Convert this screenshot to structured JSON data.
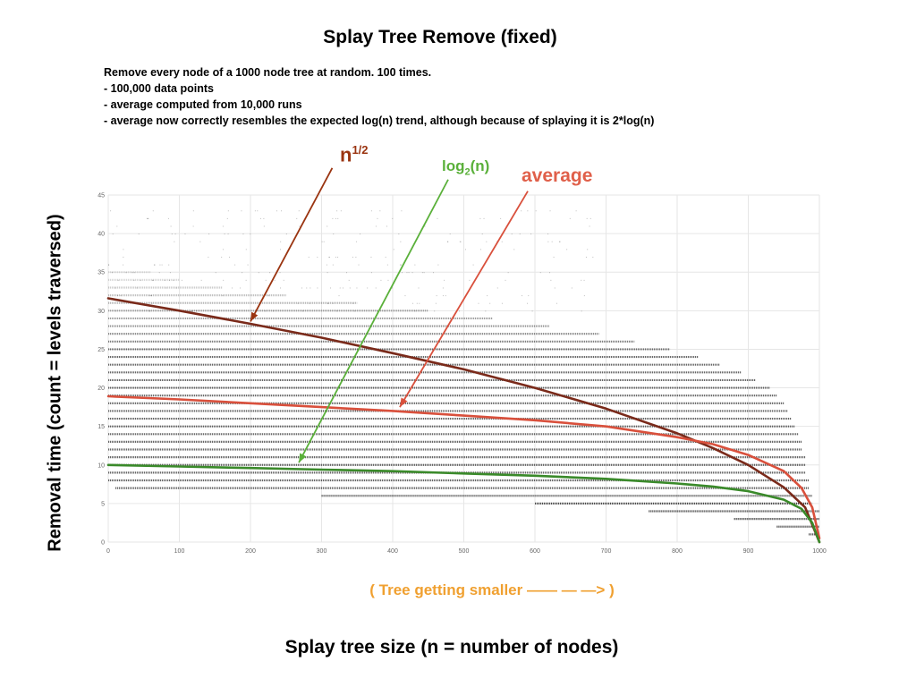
{
  "title": "Splay Tree Remove (fixed)",
  "notes": {
    "intro": "Remove every node of a 1000 node tree at random. 100 times.",
    "bullets": [
      "100,000 data points",
      "average computed from 10,000 runs",
      "average now correctly resembles the expected log(n) trend, although because of splaying it is 2*log(n)"
    ]
  },
  "annotations": {
    "sqrt_base": "n",
    "sqrt_exp": "1/2",
    "log_base": "log",
    "log_sub": "2",
    "log_arg": "(n)",
    "average": "average",
    "direction": "( Tree getting smaller —— — —> )"
  },
  "chart_data": {
    "type": "scatter",
    "xlabel": "Splay tree size (n = number of nodes)",
    "ylabel": "Removal time (count = levels traversed)",
    "xlim": [
      0,
      1000
    ],
    "ylim": [
      0,
      45
    ],
    "x_ticks": [
      0,
      100,
      200,
      300,
      400,
      500,
      600,
      700,
      800,
      900,
      1000
    ],
    "y_ticks": [
      0,
      5,
      10,
      15,
      20,
      25,
      30,
      35,
      40,
      45
    ],
    "grid": true,
    "scatter_point_count_text": "100,000 data points",
    "series": [
      {
        "name": "n^(1/2)",
        "color": "#7a2a1a",
        "points": [
          [
            0,
            31.6
          ],
          [
            100,
            30
          ],
          [
            200,
            28.3
          ],
          [
            300,
            26.5
          ],
          [
            400,
            24.5
          ],
          [
            500,
            22.4
          ],
          [
            600,
            20
          ],
          [
            700,
            17.3
          ],
          [
            800,
            14.1
          ],
          [
            850,
            12.2
          ],
          [
            900,
            10
          ],
          [
            950,
            7.1
          ],
          [
            980,
            4.5
          ],
          [
            1000,
            0
          ]
        ]
      },
      {
        "name": "average",
        "color": "#d9503c",
        "points": [
          [
            0,
            18.9
          ],
          [
            100,
            18.5
          ],
          [
            200,
            18.0
          ],
          [
            300,
            17.5
          ],
          [
            400,
            17.0
          ],
          [
            500,
            16.4
          ],
          [
            600,
            15.8
          ],
          [
            700,
            15.0
          ],
          [
            800,
            13.6
          ],
          [
            850,
            12.7
          ],
          [
            900,
            11.3
          ],
          [
            950,
            9.2
          ],
          [
            975,
            7.0
          ],
          [
            990,
            4.5
          ],
          [
            1000,
            0.5
          ]
        ]
      },
      {
        "name": "log2(n)",
        "color": "#3a8a2a",
        "points": [
          [
            0,
            10
          ],
          [
            100,
            9.8
          ],
          [
            200,
            9.6
          ],
          [
            300,
            9.4
          ],
          [
            400,
            9.2
          ],
          [
            500,
            8.9
          ],
          [
            600,
            8.6
          ],
          [
            700,
            8.2
          ],
          [
            800,
            7.6
          ],
          [
            850,
            7.2
          ],
          [
            900,
            6.6
          ],
          [
            950,
            5.5
          ],
          [
            975,
            4.3
          ],
          [
            990,
            2.5
          ],
          [
            1000,
            0
          ]
        ]
      }
    ],
    "scatter_rows": [
      {
        "y": 1,
        "x0": 985,
        "x1": 1000
      },
      {
        "y": 2,
        "x0": 940,
        "x1": 1000
      },
      {
        "y": 3,
        "x0": 880,
        "x1": 1000
      },
      {
        "y": 4,
        "x0": 760,
        "x1": 1000
      },
      {
        "y": 5,
        "x0": 600,
        "x1": 990
      },
      {
        "y": 6,
        "x0": 300,
        "x1": 990
      },
      {
        "y": 7,
        "x0": 10,
        "x1": 985
      },
      {
        "y": 8,
        "x0": 0,
        "x1": 985
      },
      {
        "y": 9,
        "x0": 0,
        "x1": 980
      },
      {
        "y": 10,
        "x0": 0,
        "x1": 980
      },
      {
        "y": 11,
        "x0": 0,
        "x1": 980
      },
      {
        "y": 12,
        "x0": 0,
        "x1": 975
      },
      {
        "y": 13,
        "x0": 0,
        "x1": 975
      },
      {
        "y": 14,
        "x0": 0,
        "x1": 970
      },
      {
        "y": 15,
        "x0": 0,
        "x1": 965
      },
      {
        "y": 16,
        "x0": 0,
        "x1": 960
      },
      {
        "y": 17,
        "x0": 0,
        "x1": 955
      },
      {
        "y": 18,
        "x0": 0,
        "x1": 950
      },
      {
        "y": 19,
        "x0": 0,
        "x1": 940
      },
      {
        "y": 20,
        "x0": 0,
        "x1": 930
      },
      {
        "y": 21,
        "x0": 0,
        "x1": 910
      },
      {
        "y": 22,
        "x0": 0,
        "x1": 890
      },
      {
        "y": 23,
        "x0": 0,
        "x1": 860
      },
      {
        "y": 24,
        "x0": 0,
        "x1": 830
      },
      {
        "y": 25,
        "x0": 0,
        "x1": 790
      },
      {
        "y": 26,
        "x0": 0,
        "x1": 740
      },
      {
        "y": 27,
        "x0": 0,
        "x1": 690
      },
      {
        "y": 28,
        "x0": 0,
        "x1": 620
      },
      {
        "y": 29,
        "x0": 0,
        "x1": 540
      },
      {
        "y": 30,
        "x0": 0,
        "x1": 450
      },
      {
        "y": 31,
        "x0": 0,
        "x1": 350
      },
      {
        "y": 32,
        "x0": 0,
        "x1": 250
      },
      {
        "y": 33,
        "x0": 0,
        "x1": 160
      },
      {
        "y": 34,
        "x0": 0,
        "x1": 100
      },
      {
        "y": 35,
        "x0": 0,
        "x1": 60
      }
    ],
    "arrows": [
      {
        "name": "sqrt-arrow",
        "color": "#9a3410",
        "from": [
          315,
          48.5
        ],
        "to": [
          200,
          28.6
        ]
      },
      {
        "name": "log-arrow",
        "color": "#5ab03a",
        "from": [
          478,
          47
        ],
        "to": [
          268,
          10.3
        ]
      },
      {
        "name": "average-arrow",
        "color": "#d9503c",
        "from": [
          590,
          45.5
        ],
        "to": [
          410,
          17.5
        ]
      }
    ]
  }
}
